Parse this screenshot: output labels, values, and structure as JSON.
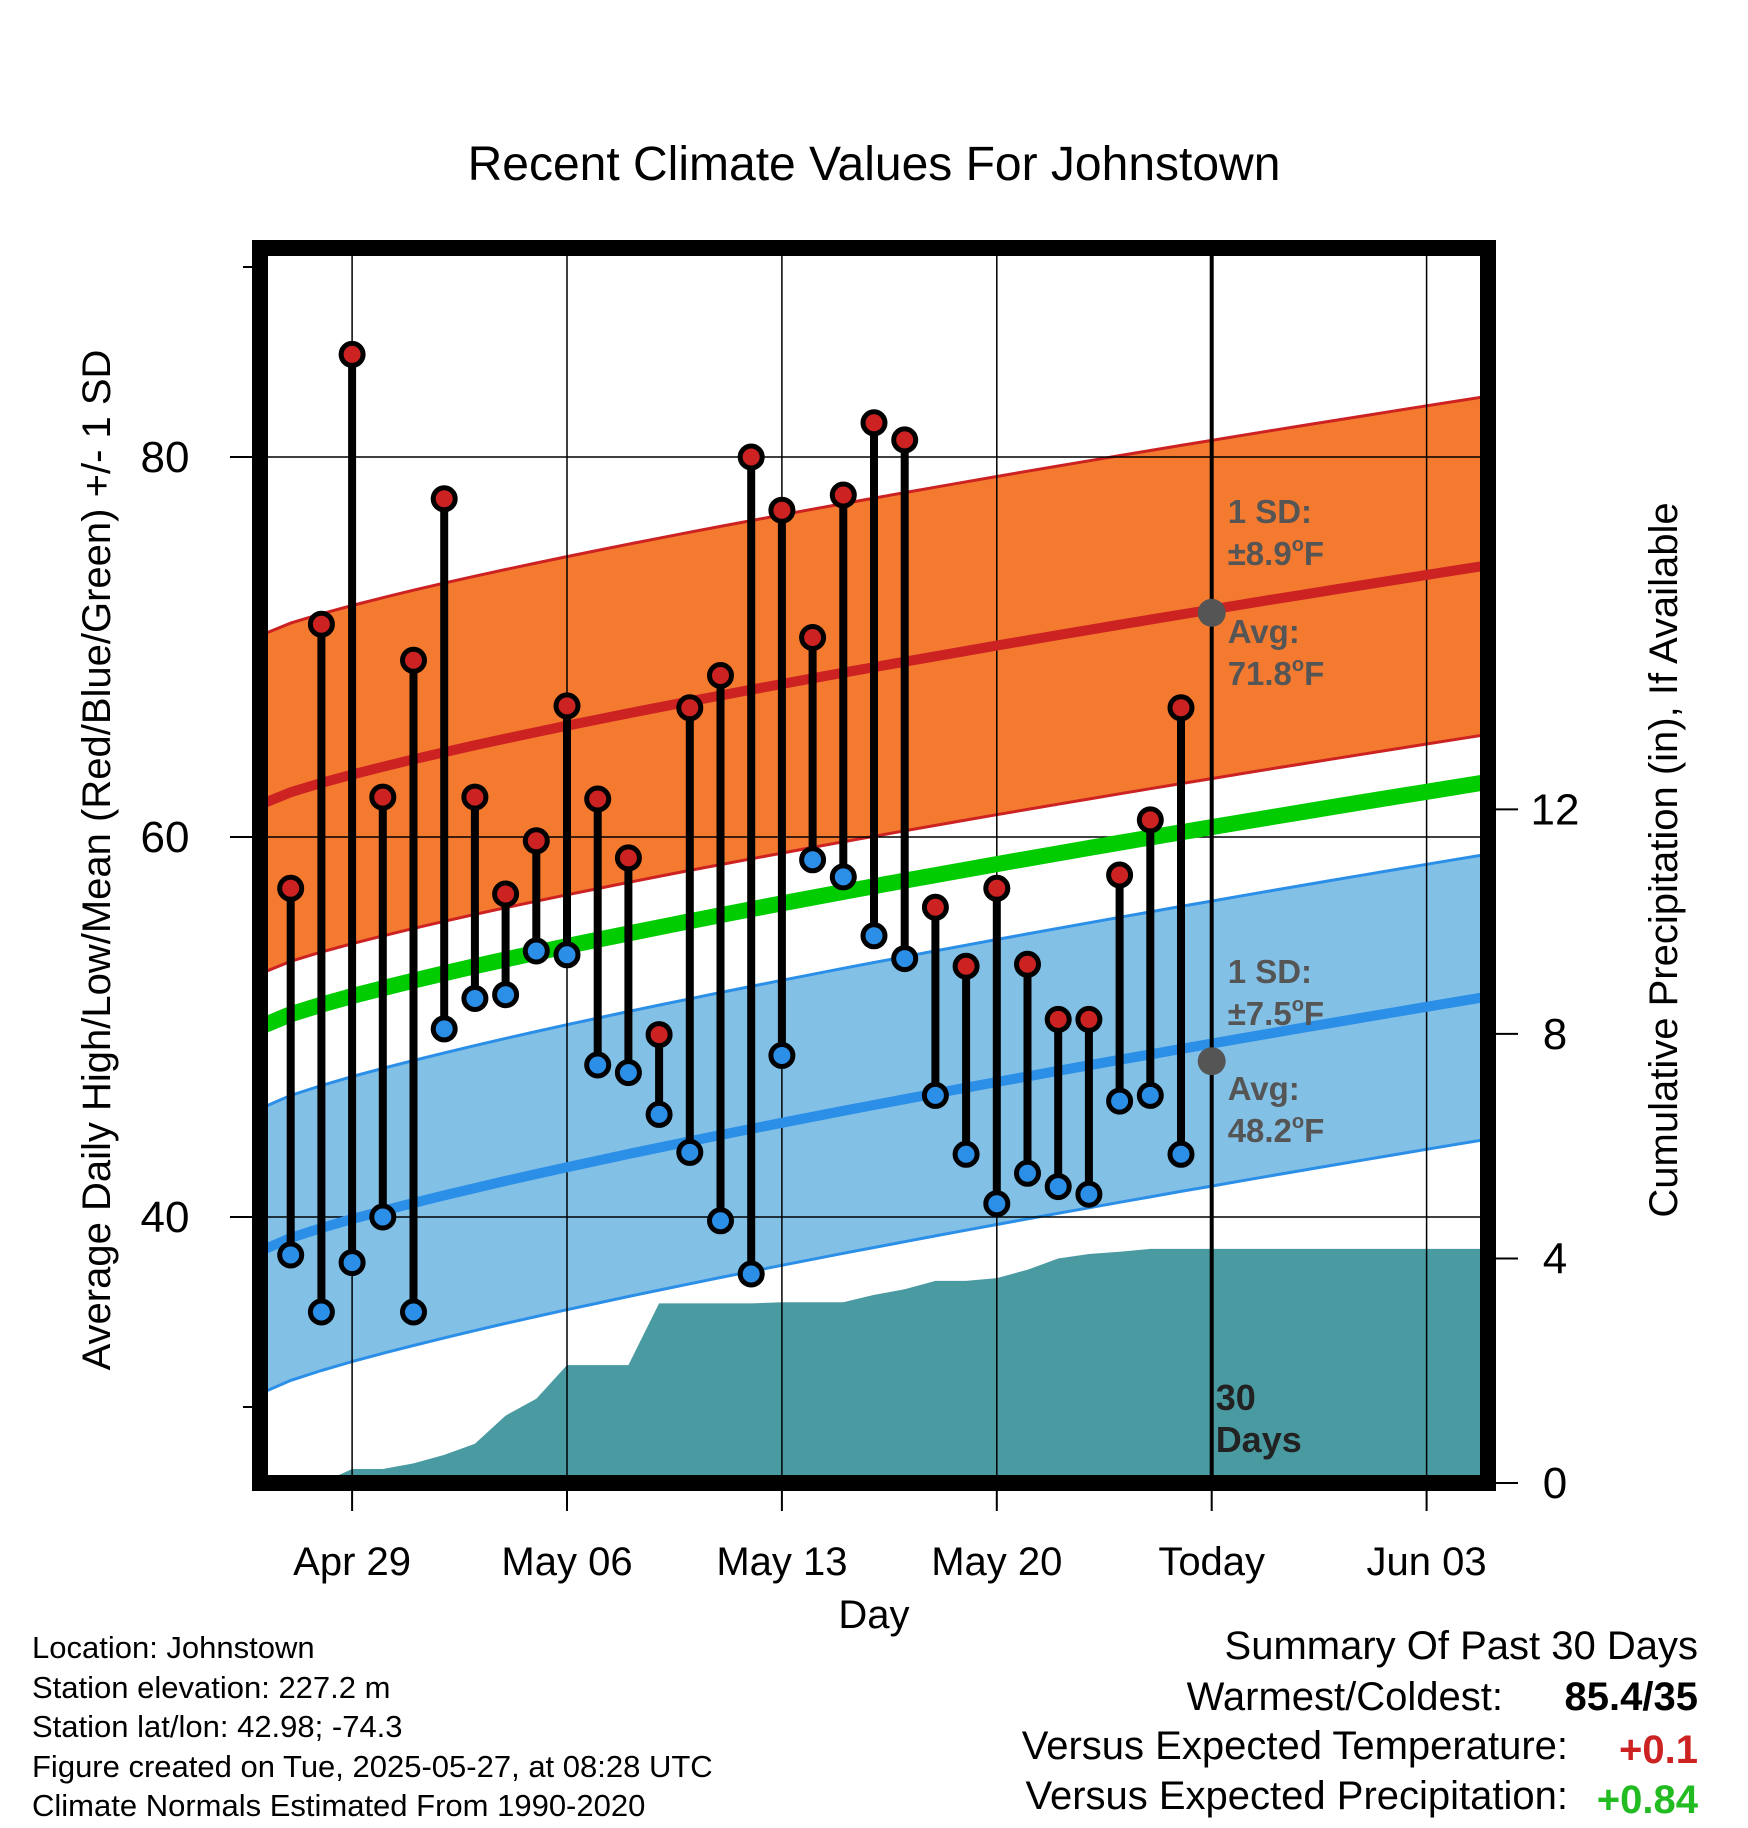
{
  "chart_data": {
    "type": "line",
    "title": "Recent Climate Values For Johnstown",
    "xlabel": "Day",
    "ylabel": "Average Daily High/Low/Mean (Red/Blue/Green) +/- 1 SD",
    "y2label": "Cumulative Precipitation (in), If Available",
    "x_start": "Apr 26",
    "x_end": "Jun 05",
    "ylim": [
      26,
      91
    ],
    "y2lim": [
      0,
      22
    ],
    "x_ticks": [
      "Apr 29",
      "May 06",
      "May 13",
      "May 20",
      "Today",
      "Jun 03"
    ],
    "y_ticks": [
      "40",
      "60",
      "80"
    ],
    "y2_ticks": [
      "0",
      "4",
      "8",
      "12"
    ],
    "grid": true,
    "today": "May 27",
    "series": [
      {
        "name": "High",
        "color": "#cc2222",
        "x": [
          "Apr 27",
          "Apr 28",
          "Apr 29",
          "Apr 30",
          "May 01",
          "May 02",
          "May 03",
          "May 04",
          "May 05",
          "May 06",
          "May 07",
          "May 08",
          "May 09",
          "May 10",
          "May 11",
          "May 12",
          "May 13",
          "May 14",
          "May 15",
          "May 16",
          "May 17",
          "May 18",
          "May 19",
          "May 20",
          "May 21",
          "May 22",
          "May 23",
          "May 24",
          "May 25",
          "May 26"
        ],
        "values": [
          57.3,
          71.2,
          85.4,
          62.1,
          69.3,
          77.8,
          62.1,
          57.0,
          59.8,
          66.9,
          62.0,
          58.9,
          49.6,
          66.8,
          68.5,
          80.0,
          77.2,
          70.5,
          78.0,
          81.8,
          80.9,
          56.3,
          53.2,
          57.3,
          53.3,
          50.4,
          50.4,
          58.0,
          60.9,
          66.8
        ]
      },
      {
        "name": "Low",
        "color": "#2b8fe8",
        "x": [
          "Apr 27",
          "Apr 28",
          "Apr 29",
          "Apr 30",
          "May 01",
          "May 02",
          "May 03",
          "May 04",
          "May 05",
          "May 06",
          "May 07",
          "May 08",
          "May 09",
          "May 10",
          "May 11",
          "May 12",
          "May 13",
          "May 14",
          "May 15",
          "May 16",
          "May 17",
          "May 18",
          "May 19",
          "May 20",
          "May 21",
          "May 22",
          "May 23",
          "May 24",
          "May 25",
          "May 26"
        ],
        "values": [
          38.0,
          35.0,
          37.6,
          40.0,
          35.0,
          49.9,
          51.5,
          51.7,
          54.0,
          53.8,
          48.0,
          47.6,
          45.4,
          43.4,
          39.8,
          37.0,
          48.5,
          58.8,
          57.9,
          54.8,
          53.6,
          46.4,
          43.3,
          40.7,
          42.3,
          41.6,
          41.2,
          46.1,
          46.4,
          43.3
        ]
      },
      {
        "name": "Normal High",
        "color": "#cc2222",
        "x": [
          "Apr 26",
          "Jun 05"
        ],
        "values": [
          61.7,
          74.3
        ],
        "sd": 8.9
      },
      {
        "name": "Normal Mean",
        "color": "#00cc00",
        "x": [
          "Apr 26",
          "Jun 05"
        ],
        "values": [
          50.0,
          62.9
        ]
      },
      {
        "name": "Normal Low",
        "color": "#2b8fe8",
        "x": [
          "Apr 26",
          "Jun 05"
        ],
        "values": [
          38.2,
          51.6
        ],
        "sd": 7.5
      },
      {
        "name": "Cumulative Precipitation",
        "color": "#4a9aa2",
        "x": [
          "Apr 28",
          "Apr 29",
          "Apr 30",
          "May 01",
          "May 02",
          "May 03",
          "May 04",
          "May 05",
          "May 06",
          "May 07",
          "May 08",
          "May 09",
          "May 10",
          "May 11",
          "May 12",
          "May 13",
          "May 14",
          "May 15",
          "May 16",
          "May 17",
          "May 18",
          "May 19",
          "May 20",
          "May 21",
          "May 22",
          "May 23",
          "May 24",
          "May 25",
          "May 26",
          "May 27",
          "Jun 05"
        ],
        "values": [
          0.0,
          0.25,
          0.25,
          0.35,
          0.5,
          0.7,
          1.2,
          1.5,
          2.1,
          2.1,
          2.1,
          3.2,
          3.2,
          3.2,
          3.2,
          3.22,
          3.22,
          3.22,
          3.35,
          3.45,
          3.6,
          3.6,
          3.65,
          3.8,
          4.0,
          4.08,
          4.12,
          4.17,
          4.17,
          4.17,
          4.17
        ]
      }
    ],
    "annotations": {
      "high_sd_label": "1 SD:",
      "high_sd_value": "±8.9",
      "high_avg_label": "Avg:",
      "high_avg_value": "71.8",
      "low_sd_label": "1 SD:",
      "low_sd_value": "±7.5",
      "low_avg_label": "Avg:",
      "low_avg_value": "48.2",
      "unit_sup": "o",
      "unit": "F",
      "days_label_1": "30",
      "days_label_2": "Days"
    }
  },
  "footer": {
    "location": "Location: Johnstown",
    "elevation": "Station elevation: 227.2 m",
    "latlon": "Station lat/lon: 42.98; -74.3",
    "created": "Figure created on Tue, 2025-05-27, at 08:28 UTC",
    "normals": "Climate Normals Estimated From 1990-2020"
  },
  "summary": {
    "title": "Summary Of Past 30 Days",
    "warm_cold_label": "Warmest/Coldest:",
    "warm_cold_value": "85.4/35",
    "temp_label": "Versus Expected Temperature:",
    "temp_value": "+0.1",
    "precip_label": "Versus Expected Precipitation:",
    "precip_value": "+0.84",
    "temp_color": "#cc2222",
    "precip_color": "#22bb22"
  }
}
